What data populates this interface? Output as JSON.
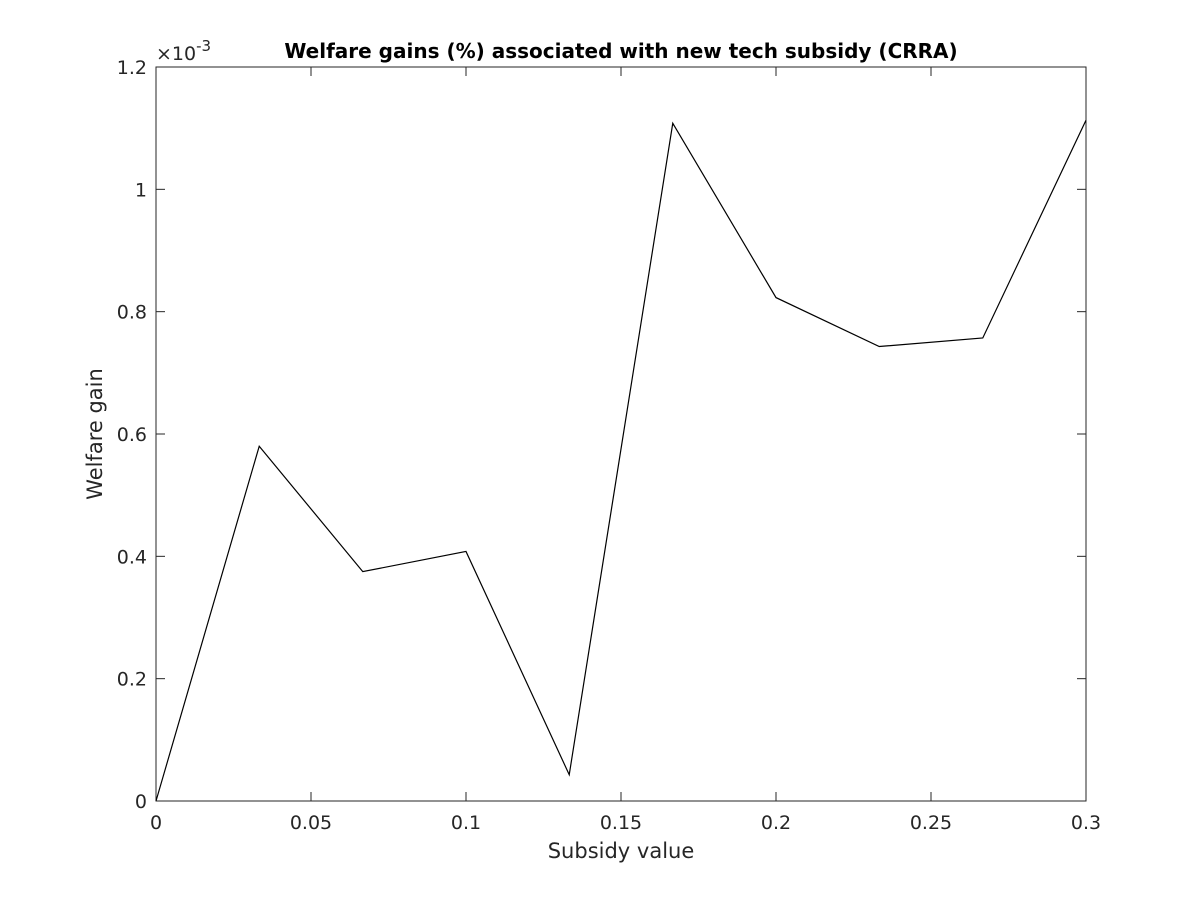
{
  "chart_data": {
    "type": "line",
    "title": "Welfare gains (%) associated with new tech subsidy (CRRA)",
    "xlabel": "Subsidy value",
    "ylabel": "Welfare gain",
    "xlim": [
      0,
      0.3
    ],
    "ylim": [
      0,
      1.2
    ],
    "y_exponent_base": "×10",
    "y_exponent_power": "-3",
    "xticks": [
      "0",
      "0.05",
      "0.1",
      "0.15",
      "0.2",
      "0.25",
      "0.3"
    ],
    "yticks": [
      "0",
      "0.2",
      "0.4",
      "0.6",
      "0.8",
      "1",
      "1.2"
    ],
    "grid": false,
    "series": [
      {
        "color": "#000000",
        "x": [
          0,
          0.0333,
          0.0667,
          0.1,
          0.1333,
          0.1667,
          0.2,
          0.2333,
          0.2667,
          0.3
        ],
        "y": [
          0.0,
          0.58,
          0.375,
          0.408,
          0.043,
          1.108,
          0.823,
          0.743,
          0.757,
          1.113
        ]
      }
    ]
  }
}
